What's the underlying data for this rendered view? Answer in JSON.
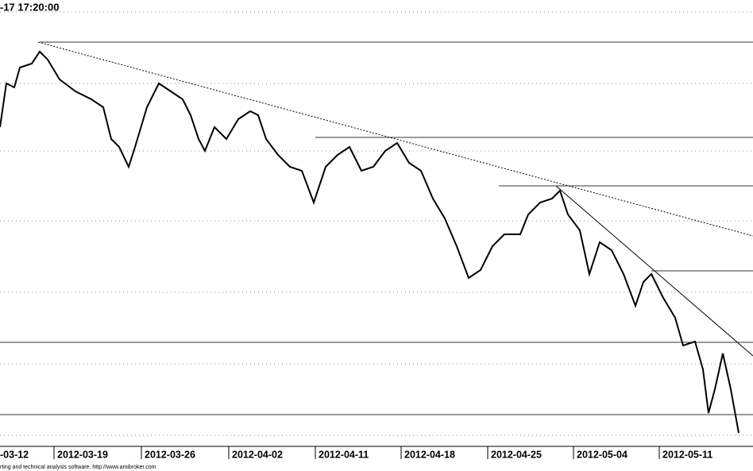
{
  "chart_data": {
    "type": "line",
    "title": "-17 17:20:00",
    "footer": "rting and technical analysis software. http://www.amibroker.com",
    "xlim": [
      0,
      948
    ],
    "ylim": [
      0,
      562
    ],
    "xticks": [
      {
        "value": -40,
        "label": "-03-12"
      },
      {
        "value": 68,
        "label": "2012-03-19"
      },
      {
        "value": 178,
        "label": "2012-03-26"
      },
      {
        "value": 288,
        "label": "2012-04-02"
      },
      {
        "value": 397,
        "label": "2012-04-11"
      },
      {
        "value": 505,
        "label": "2012-04-18"
      },
      {
        "value": 614,
        "label": "2012-04-25"
      },
      {
        "value": 722,
        "label": "2012-05-04"
      },
      {
        "value": 830,
        "label": "2012-05-11"
      }
    ],
    "yticks": [
      14,
      104,
      194,
      284,
      372,
      457,
      547
    ],
    "grid": true,
    "series": [
      {
        "color": "#000000",
        "x": [
          0,
          8,
          18,
          25,
          40,
          50,
          60,
          75,
          95,
          115,
          130,
          140,
          150,
          162,
          170,
          185,
          200,
          215,
          230,
          240,
          250,
          258,
          270,
          285,
          300,
          315,
          325,
          335,
          350,
          365,
          380,
          395,
          410,
          425,
          440,
          455,
          470,
          485,
          500,
          515,
          530,
          545,
          560,
          575,
          590,
          605,
          620,
          635,
          655,
          665,
          680,
          695,
          705,
          715,
          730,
          742,
          755,
          770,
          785,
          800,
          810,
          820,
          835,
          850,
          860,
          875,
          885,
          892,
          900,
          910,
          920,
          930
        ],
        "values": [
          402,
          457,
          452,
          477,
          482,
          497,
          487,
          462,
          447,
          437,
          427,
          387,
          377,
          352,
          377,
          427,
          457,
          447,
          437,
          417,
          387,
          372,
          402,
          387,
          412,
          422,
          417,
          387,
          367,
          352,
          347,
          307,
          352,
          367,
          377,
          347,
          352,
          372,
          382,
          357,
          347,
          312,
          287,
          252,
          212,
          222,
          252,
          267,
          267,
          292,
          307,
          312,
          322,
          292,
          272,
          217,
          257,
          247,
          217,
          177,
          207,
          217,
          187,
          162,
          127,
          132,
          97,
          42,
          72,
          117,
          72,
          17
        ]
      }
    ],
    "hlines": [
      {
        "value": 509,
        "start": 50
      },
      {
        "value": 389,
        "start": 397
      },
      {
        "value": 328,
        "start": 628
      },
      {
        "value": 221,
        "start": 820
      },
      {
        "value": 131,
        "start": 0
      },
      {
        "value": 40,
        "start": 0
      }
    ],
    "trendlines": [
      {
        "x": [
          48,
          948
        ],
        "y": [
          509,
          265
        ],
        "dashed": true
      },
      {
        "x": [
          700,
          948
        ],
        "y": [
          328,
          114
        ],
        "dashed": false
      }
    ]
  }
}
